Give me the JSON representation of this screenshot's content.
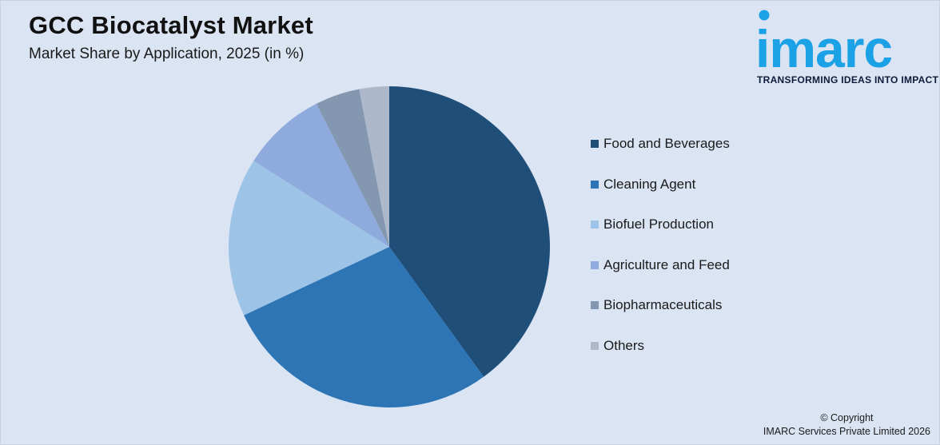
{
  "header": {
    "title": "GCC Biocatalyst Market",
    "subtitle": "Market Share by Application, 2025 (in %)"
  },
  "brand": {
    "logo_text": "imarc",
    "tagline": "TRANSFORMING IDEAS INTO IMPACT",
    "logo_color": "#1aa1e6"
  },
  "chart_data": {
    "type": "pie",
    "title": "GCC Biocatalyst Market",
    "subtitle": "Market Share by Application, 2025 (in %)",
    "categories": [
      "Food and Beverages",
      "Cleaning Agent",
      "Biofuel Production",
      "Agriculture and Feed",
      "Biopharmaceuticals",
      "Others"
    ],
    "values": [
      40,
      28,
      16,
      8.5,
      4.5,
      3
    ],
    "colors": [
      "#1f4e79",
      "#2e75b6",
      "#9dc3e6",
      "#8faadc",
      "#8497b0",
      "#adb9ca"
    ],
    "start_angle_deg": 0,
    "direction": "clockwise",
    "legend_position": "right"
  },
  "footer": {
    "copyright_line1": "© Copyright",
    "copyright_line2": "IMARC Services Private Limited 2026"
  }
}
